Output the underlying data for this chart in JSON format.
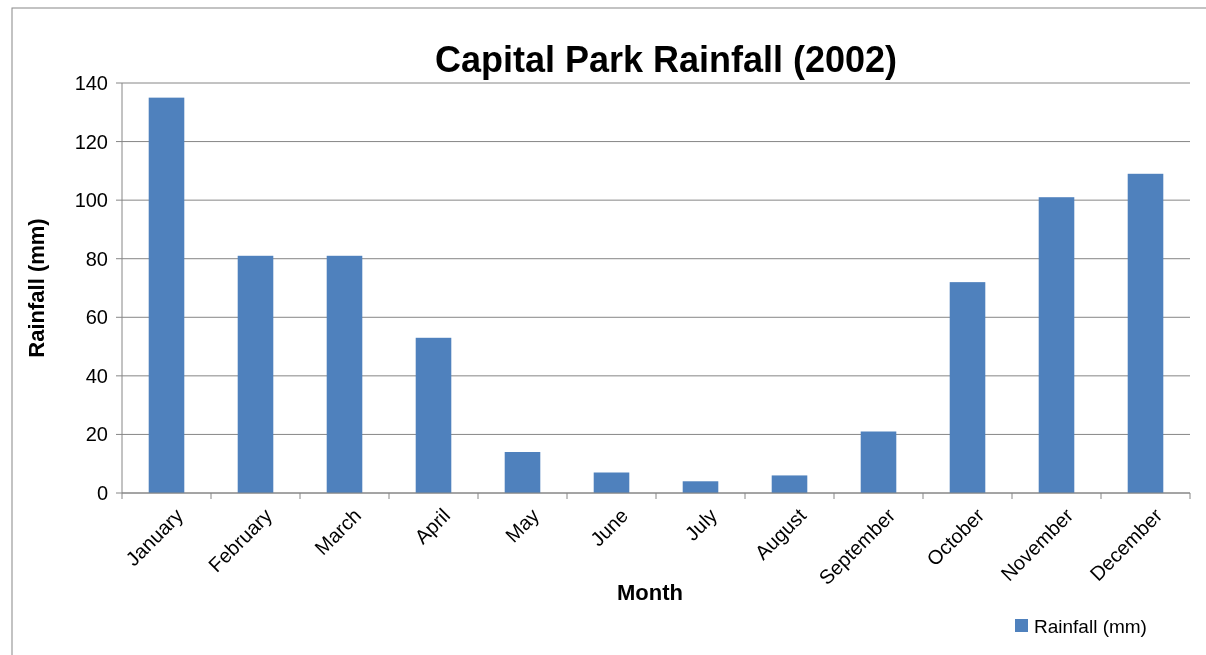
{
  "chart_data": {
    "type": "bar",
    "title": "Capital Park Rainfall (2002)",
    "xlabel": "Month",
    "ylabel": "Rainfall (mm)",
    "categories": [
      "January",
      "February",
      "March",
      "April",
      "May",
      "June",
      "July",
      "August",
      "September",
      "October",
      "November",
      "December"
    ],
    "series": [
      {
        "name": "Rainfall (mm)",
        "color": "#4f81bd",
        "values": [
          135,
          81,
          81,
          53,
          14,
          7,
          4,
          6,
          21,
          72,
          101,
          109
        ]
      }
    ],
    "ylim": [
      0,
      140
    ],
    "yticks": [
      0,
      20,
      40,
      60,
      80,
      100,
      120,
      140
    ],
    "grid": "y",
    "legend": "bottom right"
  }
}
